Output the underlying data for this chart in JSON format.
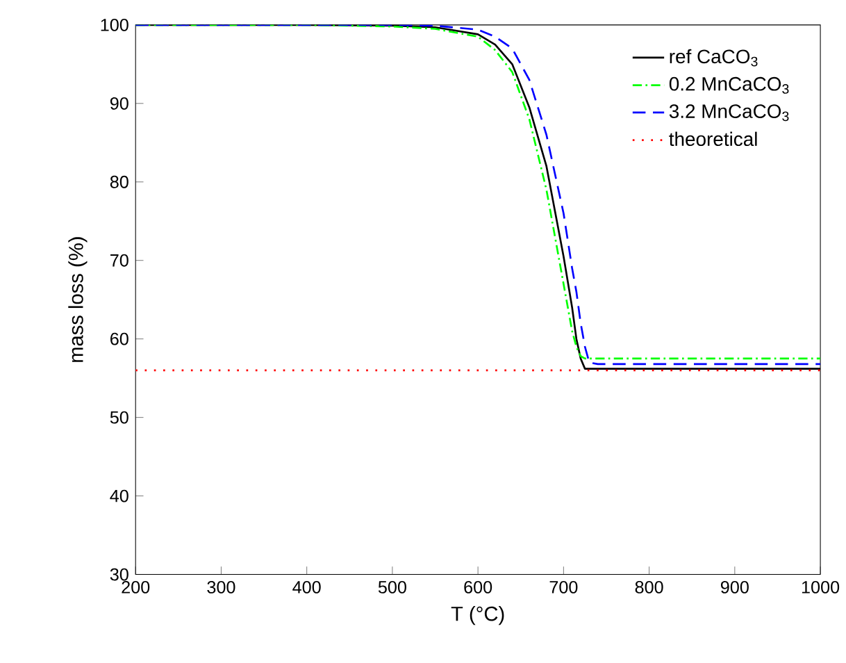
{
  "chart_data": {
    "type": "line",
    "xlabel": "T (°C)",
    "ylabel": "mass loss (%)",
    "x": [
      200,
      300,
      400,
      500,
      550,
      600,
      620,
      640,
      660,
      680,
      700,
      710,
      715,
      720,
      725,
      730,
      740,
      800,
      900,
      1000
    ],
    "series": [
      {
        "name": "ref CaCO$_{3}$",
        "color": "#000000",
        "line_style": "solid",
        "values": [
          100,
          100,
          100,
          99.9,
          99.7,
          98.8,
          97.5,
          95,
          89.5,
          82,
          70.5,
          64,
          60,
          57.5,
          56.2,
          56.2,
          56.2,
          56.2,
          56.2,
          56.2
        ]
      },
      {
        "name": "0.2 MnCaCO$_{3}$",
        "color": "#00ff00",
        "line_style": "dashdot",
        "values": [
          100,
          100,
          100,
          99.8,
          99.5,
          98.5,
          96.8,
          94,
          88,
          79,
          67,
          61,
          59,
          57.8,
          57.5,
          57.5,
          57.5,
          57.5,
          57.5,
          57.5
        ]
      },
      {
        "name": "3.2 MnCaCO$_{3}$",
        "color": "#0000ff",
        "line_style": "dashed",
        "values": [
          100,
          100,
          100,
          100,
          99.9,
          99.4,
          98.5,
          97,
          93,
          86,
          76,
          69,
          66,
          62,
          59,
          57,
          56.8,
          56.8,
          56.8,
          56.8
        ]
      }
    ],
    "ref_lines": [
      {
        "axis": "y",
        "value": 56,
        "label": "theoretical",
        "color": "#ff0000",
        "line_style": "dotted"
      }
    ],
    "xlim": [
      200,
      1000
    ],
    "xticks": [
      200,
      300,
      400,
      500,
      600,
      700,
      800,
      900,
      1000
    ],
    "ylim": [
      30,
      100
    ],
    "yticks": [
      30,
      40,
      50,
      60,
      70,
      80,
      90,
      100
    ],
    "grid": false,
    "legend": "top right"
  }
}
